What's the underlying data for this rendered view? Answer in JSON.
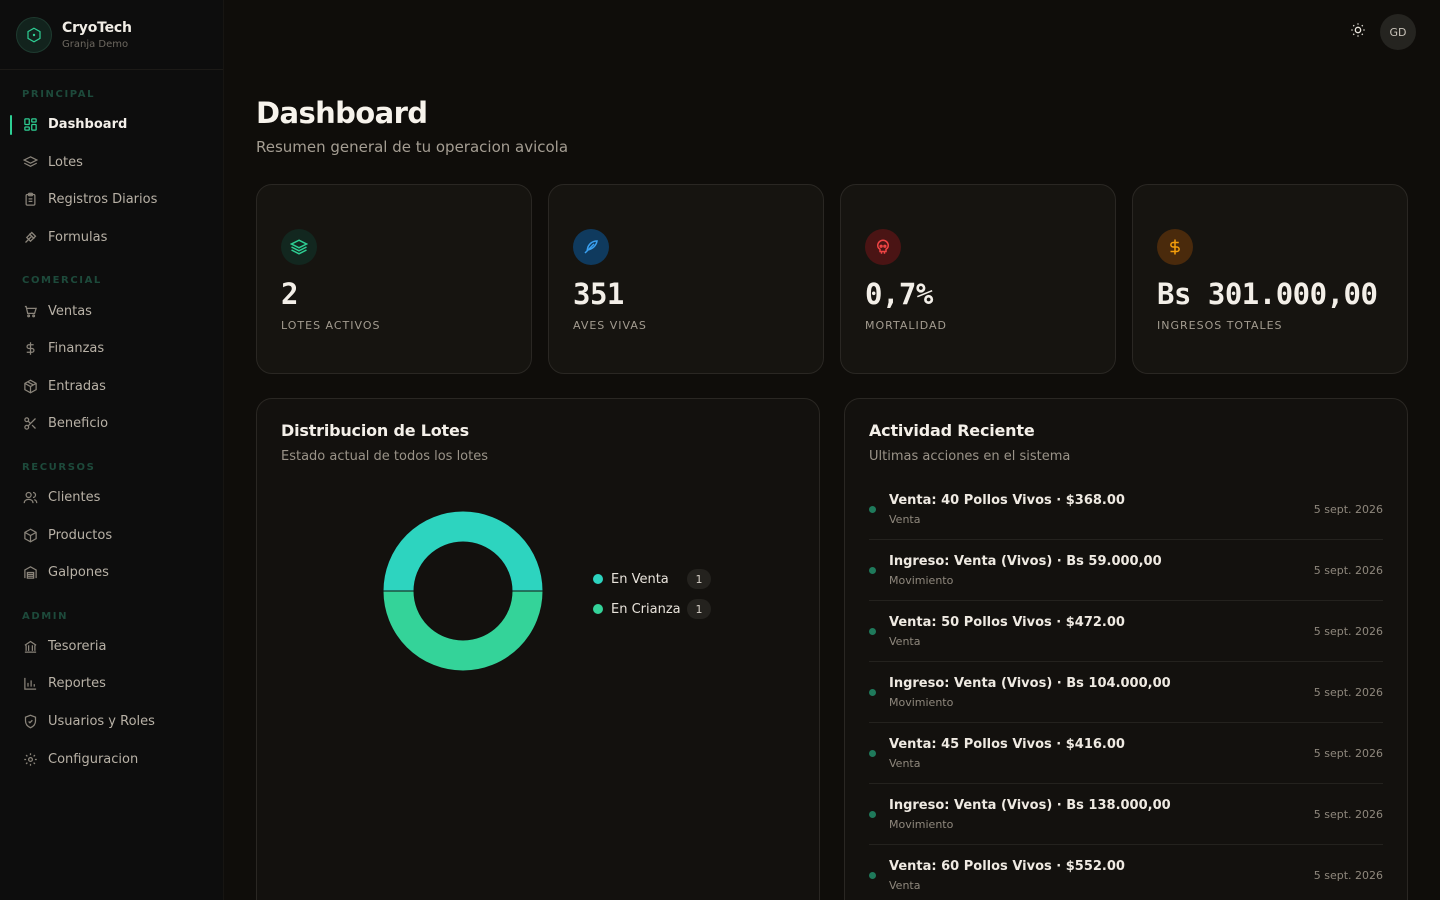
{
  "brand": {
    "name": "CryoTech",
    "subtitle": "Granja Demo",
    "accent": "#2ecf94"
  },
  "sidebar": {
    "sections": [
      {
        "title": "PRINCIPAL",
        "items": [
          {
            "label": "Dashboard",
            "icon": "grid-icon",
            "active": true
          },
          {
            "label": "Lotes",
            "icon": "layers-icon"
          },
          {
            "label": "Registros Diarios",
            "icon": "clipboard-icon"
          },
          {
            "label": "Formulas",
            "icon": "flask-icon"
          }
        ]
      },
      {
        "title": "COMERCIAL",
        "items": [
          {
            "label": "Ventas",
            "icon": "cart-icon"
          },
          {
            "label": "Finanzas",
            "icon": "dollar-icon"
          },
          {
            "label": "Entradas",
            "icon": "package-icon"
          },
          {
            "label": "Beneficio",
            "icon": "scissors-icon"
          }
        ]
      },
      {
        "title": "RECURSOS",
        "items": [
          {
            "label": "Clientes",
            "icon": "users-icon"
          },
          {
            "label": "Productos",
            "icon": "box-icon"
          },
          {
            "label": "Galpones",
            "icon": "warehouse-icon"
          }
        ]
      },
      {
        "title": "ADMIN",
        "items": [
          {
            "label": "Tesoreria",
            "icon": "bank-icon"
          },
          {
            "label": "Reportes",
            "icon": "bar-chart-icon"
          },
          {
            "label": "Usuarios y Roles",
            "icon": "shield-icon"
          },
          {
            "label": "Configuracion",
            "icon": "gear-icon"
          }
        ]
      }
    ]
  },
  "topbar": {
    "theme_icon": "sun-icon",
    "avatar_initials": "GD"
  },
  "header": {
    "title": "Dashboard",
    "subtitle": "Resumen general de tu operacion avicola"
  },
  "stats": [
    {
      "value": "2",
      "label": "LOTES ACTIVOS",
      "icon": "layers-icon",
      "color": "#2ecf94",
      "bg": "#123026"
    },
    {
      "value": "351",
      "label": "AVES VIVAS",
      "icon": "bird-icon",
      "color": "#3aa0f0",
      "bg": "#0f3a5e"
    },
    {
      "value": "0,7%",
      "label": "MORTALIDAD",
      "icon": "skull-icon",
      "color": "#ef4444",
      "bg": "#4a1414"
    },
    {
      "value": "Bs 301.000,00",
      "label": "INGRESOS TOTALES",
      "icon": "dollar-icon",
      "color": "#f59e0b",
      "bg": "#4a2a0c"
    }
  ],
  "distribution": {
    "title": "Distribucion de Lotes",
    "subtitle": "Estado actual de todos los lotes"
  },
  "chart_data": {
    "type": "pie",
    "categories": [
      "En Venta",
      "En Crianza"
    ],
    "values": [
      1,
      1
    ],
    "colors": [
      "#2dd4bf",
      "#34d399"
    ],
    "donut": true,
    "legend": "right"
  },
  "activity": {
    "title": "Actividad Reciente",
    "subtitle": "Ultimas acciones en el sistema",
    "items": [
      {
        "title": "Venta: 40 Pollos Vivos · $368.00",
        "type": "Venta",
        "date": "5 sept. 2026"
      },
      {
        "title": "Ingreso: Venta (Vivos) · Bs 59.000,00",
        "type": "Movimiento",
        "date": "5 sept. 2026"
      },
      {
        "title": "Venta: 50 Pollos Vivos · $472.00",
        "type": "Venta",
        "date": "5 sept. 2026"
      },
      {
        "title": "Ingreso: Venta (Vivos) · Bs 104.000,00",
        "type": "Movimiento",
        "date": "5 sept. 2026"
      },
      {
        "title": "Venta: 45 Pollos Vivos · $416.00",
        "type": "Venta",
        "date": "5 sept. 2026"
      },
      {
        "title": "Ingreso: Venta (Vivos) · Bs 138.000,00",
        "type": "Movimiento",
        "date": "5 sept. 2026"
      },
      {
        "title": "Venta: 60 Pollos Vivos · $552.00",
        "type": "Venta",
        "date": "5 sept. 2026"
      }
    ]
  }
}
